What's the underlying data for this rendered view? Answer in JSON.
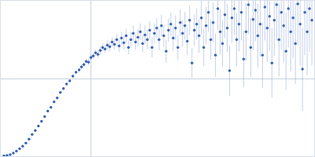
{
  "chart_data": {
    "type": "scatter",
    "marker": "circle",
    "color": "#3c64b4",
    "grid": true,
    "tick_labels": false,
    "xlim": [
      0,
      400
    ],
    "ylim": [
      0,
      200
    ],
    "xticks": [
      115
    ],
    "yticks": [
      100
    ],
    "x": [
      4,
      8,
      12,
      16,
      20,
      24,
      28,
      32,
      36,
      40,
      44,
      48,
      52,
      56,
      60,
      64,
      68,
      72,
      76,
      80,
      84,
      88,
      92,
      96,
      100,
      103,
      106,
      109,
      112,
      115,
      118,
      121,
      124,
      127,
      130,
      133,
      136,
      139,
      142,
      145,
      148,
      151,
      154,
      157,
      160,
      163,
      166,
      169,
      172,
      175,
      178,
      181,
      184,
      187,
      190,
      193,
      196,
      199,
      202,
      205,
      208,
      211,
      214,
      217,
      220,
      223,
      226,
      229,
      232,
      235,
      238,
      241,
      244,
      247,
      250,
      253,
      256,
      259,
      262,
      265,
      268,
      271,
      274,
      277,
      280,
      283,
      286,
      289,
      292,
      295,
      298,
      301,
      304,
      307,
      310,
      313,
      316,
      319,
      322,
      325,
      328,
      331,
      334,
      337,
      340,
      343,
      346,
      349,
      352,
      355,
      358,
      361,
      364,
      367,
      370,
      373,
      376,
      379,
      382,
      385,
      388,
      391,
      394,
      397
    ],
    "values": [
      0.5,
      1,
      2,
      4,
      6.5,
      9.5,
      13,
      17,
      22,
      28,
      33,
      39,
      45,
      51,
      58,
      63,
      70,
      75,
      82,
      87,
      93,
      97,
      103,
      108,
      111,
      115,
      118,
      122,
      121,
      127,
      129,
      133,
      131,
      136,
      140,
      138,
      143,
      141,
      147,
      144,
      150,
      142,
      152,
      146,
      155,
      140,
      150,
      158,
      147,
      153,
      160,
      145,
      156,
      150,
      162,
      140,
      158,
      165,
      150,
      168,
      155,
      135,
      162,
      170,
      152,
      165,
      140,
      172,
      158,
      168,
      148,
      175,
      120,
      162,
      170,
      155,
      178,
      140,
      168,
      185,
      150,
      172,
      130,
      190,
      160,
      145,
      182,
      165,
      110,
      178,
      190,
      150,
      170,
      185,
      125,
      160,
      195,
      140,
      176,
      188,
      155,
      170,
      130,
      192,
      165,
      180,
      120,
      175,
      195,
      150,
      185,
      168,
      135,
      190,
      160,
      178,
      145,
      196,
      170,
      112,
      185,
      160,
      190,
      175
    ],
    "error": [
      0.3,
      0.3,
      0.4,
      0.4,
      0.5,
      0.5,
      0.6,
      0.6,
      0.7,
      0.7,
      0.8,
      0.8,
      1,
      1,
      1,
      1.2,
      1.2,
      1.4,
      1.4,
      1.6,
      1.6,
      1.8,
      2,
      2,
      2.2,
      3,
      3,
      3,
      4,
      4,
      4,
      4,
      5,
      5,
      5,
      5,
      6,
      6,
      6,
      7,
      7,
      8,
      8,
      9,
      9,
      9,
      10,
      10,
      10,
      11,
      11,
      11,
      12,
      12,
      12,
      13,
      13,
      13,
      14,
      14,
      14,
      15,
      15,
      15,
      16,
      16,
      16,
      17,
      17,
      18,
      18,
      19,
      19,
      20,
      20,
      22,
      22,
      24,
      24,
      25,
      26,
      26,
      28,
      28,
      29,
      30,
      30,
      31,
      32,
      32,
      34,
      34,
      35,
      36,
      36,
      37,
      38,
      38,
      40,
      40,
      41,
      42,
      42,
      43,
      44,
      44,
      45,
      46,
      46,
      47,
      48,
      48,
      50,
      50,
      51,
      52,
      52,
      53,
      54,
      54,
      55,
      56,
      56,
      58
    ]
  }
}
